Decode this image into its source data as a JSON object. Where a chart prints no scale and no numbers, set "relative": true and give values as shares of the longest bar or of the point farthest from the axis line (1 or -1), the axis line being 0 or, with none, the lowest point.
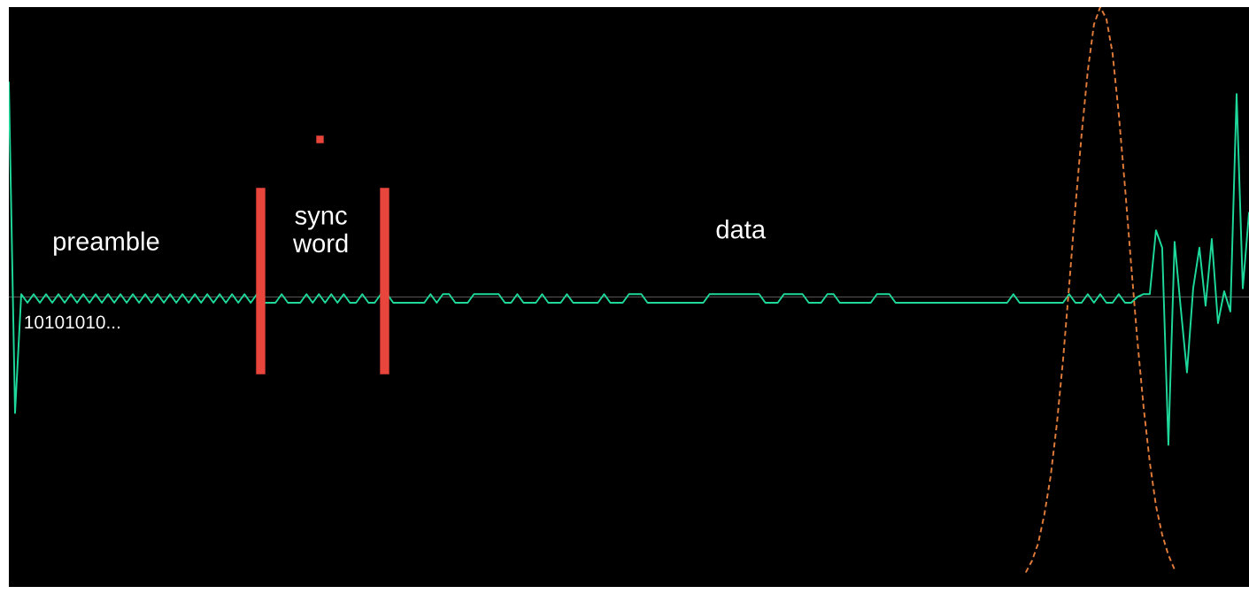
{
  "chart_data": {
    "type": "line",
    "relative": true,
    "tick_labels": false,
    "marker": "none",
    "annotations": [
      "preamble",
      "sync\nword",
      "data",
      "10101010..."
    ],
    "categories": [
      null,
      null,
      null,
      null,
      null,
      null,
      null,
      null,
      null,
      null,
      null,
      null,
      null,
      null,
      null,
      null,
      null,
      null,
      null,
      null,
      null,
      null,
      null,
      null,
      null,
      null,
      null,
      null,
      null,
      null,
      null,
      null,
      null,
      null,
      null,
      null,
      null,
      null,
      null,
      null,
      null,
      null,
      null,
      null,
      null,
      null,
      null,
      null,
      null,
      null,
      null,
      null,
      null,
      null,
      null,
      null,
      null,
      null,
      null,
      null,
      null,
      null,
      null,
      null,
      null,
      null,
      null,
      null,
      null,
      null,
      null,
      null,
      null,
      null,
      null,
      null,
      null,
      null,
      null,
      null,
      null,
      null,
      null,
      null,
      null,
      null,
      null,
      null,
      null,
      null,
      null,
      null,
      null,
      null,
      null,
      null,
      null,
      null,
      null,
      null,
      null,
      null,
      null,
      null,
      null,
      null,
      null,
      null,
      null,
      null,
      null,
      null,
      null,
      null,
      null,
      null,
      null,
      null,
      null,
      null,
      null,
      null,
      null,
      null,
      null,
      null,
      null,
      null,
      null,
      null,
      null,
      null,
      null,
      null,
      null,
      null,
      null,
      null,
      null,
      null,
      null,
      null,
      null,
      null,
      null,
      null,
      null,
      null,
      null,
      null,
      null,
      null,
      null,
      null,
      null,
      null,
      null,
      null,
      null,
      null,
      null,
      null,
      null,
      null,
      null,
      null,
      null,
      null,
      null,
      null,
      null,
      null,
      null,
      null,
      null,
      null,
      null,
      null,
      null,
      null,
      null,
      null,
      null,
      null,
      null,
      null,
      null,
      null,
      null,
      null,
      null,
      null,
      null,
      null,
      null,
      null,
      null,
      null,
      null,
      null,
      null
    ],
    "series": [
      {
        "color": "#1ed99b",
        "line_style": "solid",
        "values": [
          0.74,
          -0.4,
          0.01,
          -0.02,
          0.01,
          -0.02,
          0.01,
          -0.02,
          0.01,
          -0.02,
          0.01,
          -0.02,
          0.01,
          -0.02,
          0.01,
          -0.02,
          0.01,
          -0.02,
          0.01,
          -0.02,
          0.01,
          -0.02,
          0.01,
          -0.02,
          0.01,
          -0.02,
          0.01,
          -0.02,
          0.01,
          -0.02,
          0.01,
          -0.02,
          0.01,
          -0.02,
          0.01,
          -0.02,
          0.01,
          -0.02,
          0.01,
          -0.02,
          0.01,
          -0.02,
          -0.02,
          -0.02,
          0.01,
          -0.02,
          -0.02,
          -0.02,
          0.01,
          -0.02,
          0.01,
          -0.02,
          0.01,
          -0.02,
          0.01,
          -0.02,
          -0.02,
          0.01,
          -0.02,
          -0.02,
          0.01,
          0.01,
          -0.02,
          -0.02,
          -0.02,
          -0.02,
          -0.02,
          -0.02,
          0.01,
          -0.02,
          0.01,
          0.01,
          -0.02,
          -0.02,
          -0.02,
          0.01,
          0.01,
          0.01,
          0.01,
          0.01,
          -0.02,
          -0.02,
          0.01,
          -0.02,
          -0.02,
          -0.02,
          0.01,
          -0.02,
          -0.02,
          -0.02,
          0.01,
          -0.02,
          -0.02,
          -0.02,
          -0.02,
          -0.02,
          0.01,
          -0.02,
          -0.02,
          -0.02,
          0.01,
          0.01,
          0.01,
          -0.02,
          -0.02,
          -0.02,
          -0.02,
          -0.02,
          -0.02,
          -0.02,
          -0.02,
          -0.02,
          -0.02,
          0.01,
          0.01,
          0.01,
          0.01,
          0.01,
          0.01,
          0.01,
          0.01,
          0.01,
          -0.02,
          -0.02,
          -0.02,
          0.01,
          0.01,
          0.01,
          0.01,
          -0.02,
          -0.02,
          -0.02,
          0.01,
          0.01,
          -0.02,
          -0.02,
          -0.02,
          -0.02,
          -0.02,
          -0.02,
          0.01,
          0.01,
          0.01,
          -0.02,
          -0.02,
          -0.02,
          -0.02,
          -0.02,
          -0.02,
          -0.02,
          -0.02,
          -0.02,
          -0.02,
          -0.02,
          -0.02,
          -0.02,
          -0.02,
          -0.02,
          -0.02,
          -0.02,
          -0.02,
          -0.02,
          0.01,
          -0.02,
          -0.02,
          -0.02,
          -0.02,
          -0.02,
          -0.02,
          -0.02,
          -0.02,
          0.01,
          -0.02,
          -0.02,
          0.01,
          -0.02,
          0.01,
          -0.02,
          -0.02,
          0.01,
          -0.02,
          -0.02,
          0.0,
          0.01,
          0.01,
          0.23,
          0.17,
          -0.51,
          0.19,
          -0.04,
          -0.26,
          0.03,
          0.17,
          -0.03,
          0.2,
          -0.09,
          0.02,
          -0.05,
          0.7,
          0.03,
          0.29
        ]
      },
      {
        "color": "#e07b39",
        "line_style": "dashed",
        "values": [
          null,
          null,
          null,
          null,
          null,
          null,
          null,
          null,
          null,
          null,
          null,
          null,
          null,
          null,
          null,
          null,
          null,
          null,
          null,
          null,
          null,
          null,
          null,
          null,
          null,
          null,
          null,
          null,
          null,
          null,
          null,
          null,
          null,
          null,
          null,
          null,
          null,
          null,
          null,
          null,
          null,
          null,
          null,
          null,
          null,
          null,
          null,
          null,
          null,
          null,
          null,
          null,
          null,
          null,
          null,
          null,
          null,
          null,
          null,
          null,
          null,
          null,
          null,
          null,
          null,
          null,
          null,
          null,
          null,
          null,
          null,
          null,
          null,
          null,
          null,
          null,
          null,
          null,
          null,
          null,
          null,
          null,
          null,
          null,
          null,
          null,
          null,
          null,
          null,
          null,
          null,
          null,
          null,
          null,
          null,
          null,
          null,
          null,
          null,
          null,
          null,
          null,
          null,
          null,
          null,
          null,
          null,
          null,
          null,
          null,
          null,
          null,
          null,
          null,
          null,
          null,
          null,
          null,
          null,
          null,
          null,
          null,
          null,
          null,
          null,
          null,
          null,
          null,
          null,
          null,
          null,
          null,
          null,
          null,
          null,
          null,
          null,
          null,
          null,
          null,
          null,
          null,
          null,
          null,
          null,
          null,
          null,
          null,
          null,
          null,
          null,
          null,
          null,
          null,
          null,
          null,
          null,
          null,
          null,
          null,
          null,
          null,
          null,
          null,
          -0.95,
          -0.91,
          -0.85,
          -0.75,
          -0.62,
          -0.44,
          -0.22,
          0.04,
          0.31,
          0.56,
          0.78,
          0.94,
          1.0,
          0.96,
          0.84,
          0.63,
          0.38,
          0.11,
          -0.15,
          -0.38,
          -0.57,
          -0.72,
          -0.82,
          -0.89,
          -0.94,
          null,
          null,
          null,
          null,
          null,
          null,
          null,
          null,
          null,
          null,
          null,
          null
        ]
      }
    ]
  }
}
